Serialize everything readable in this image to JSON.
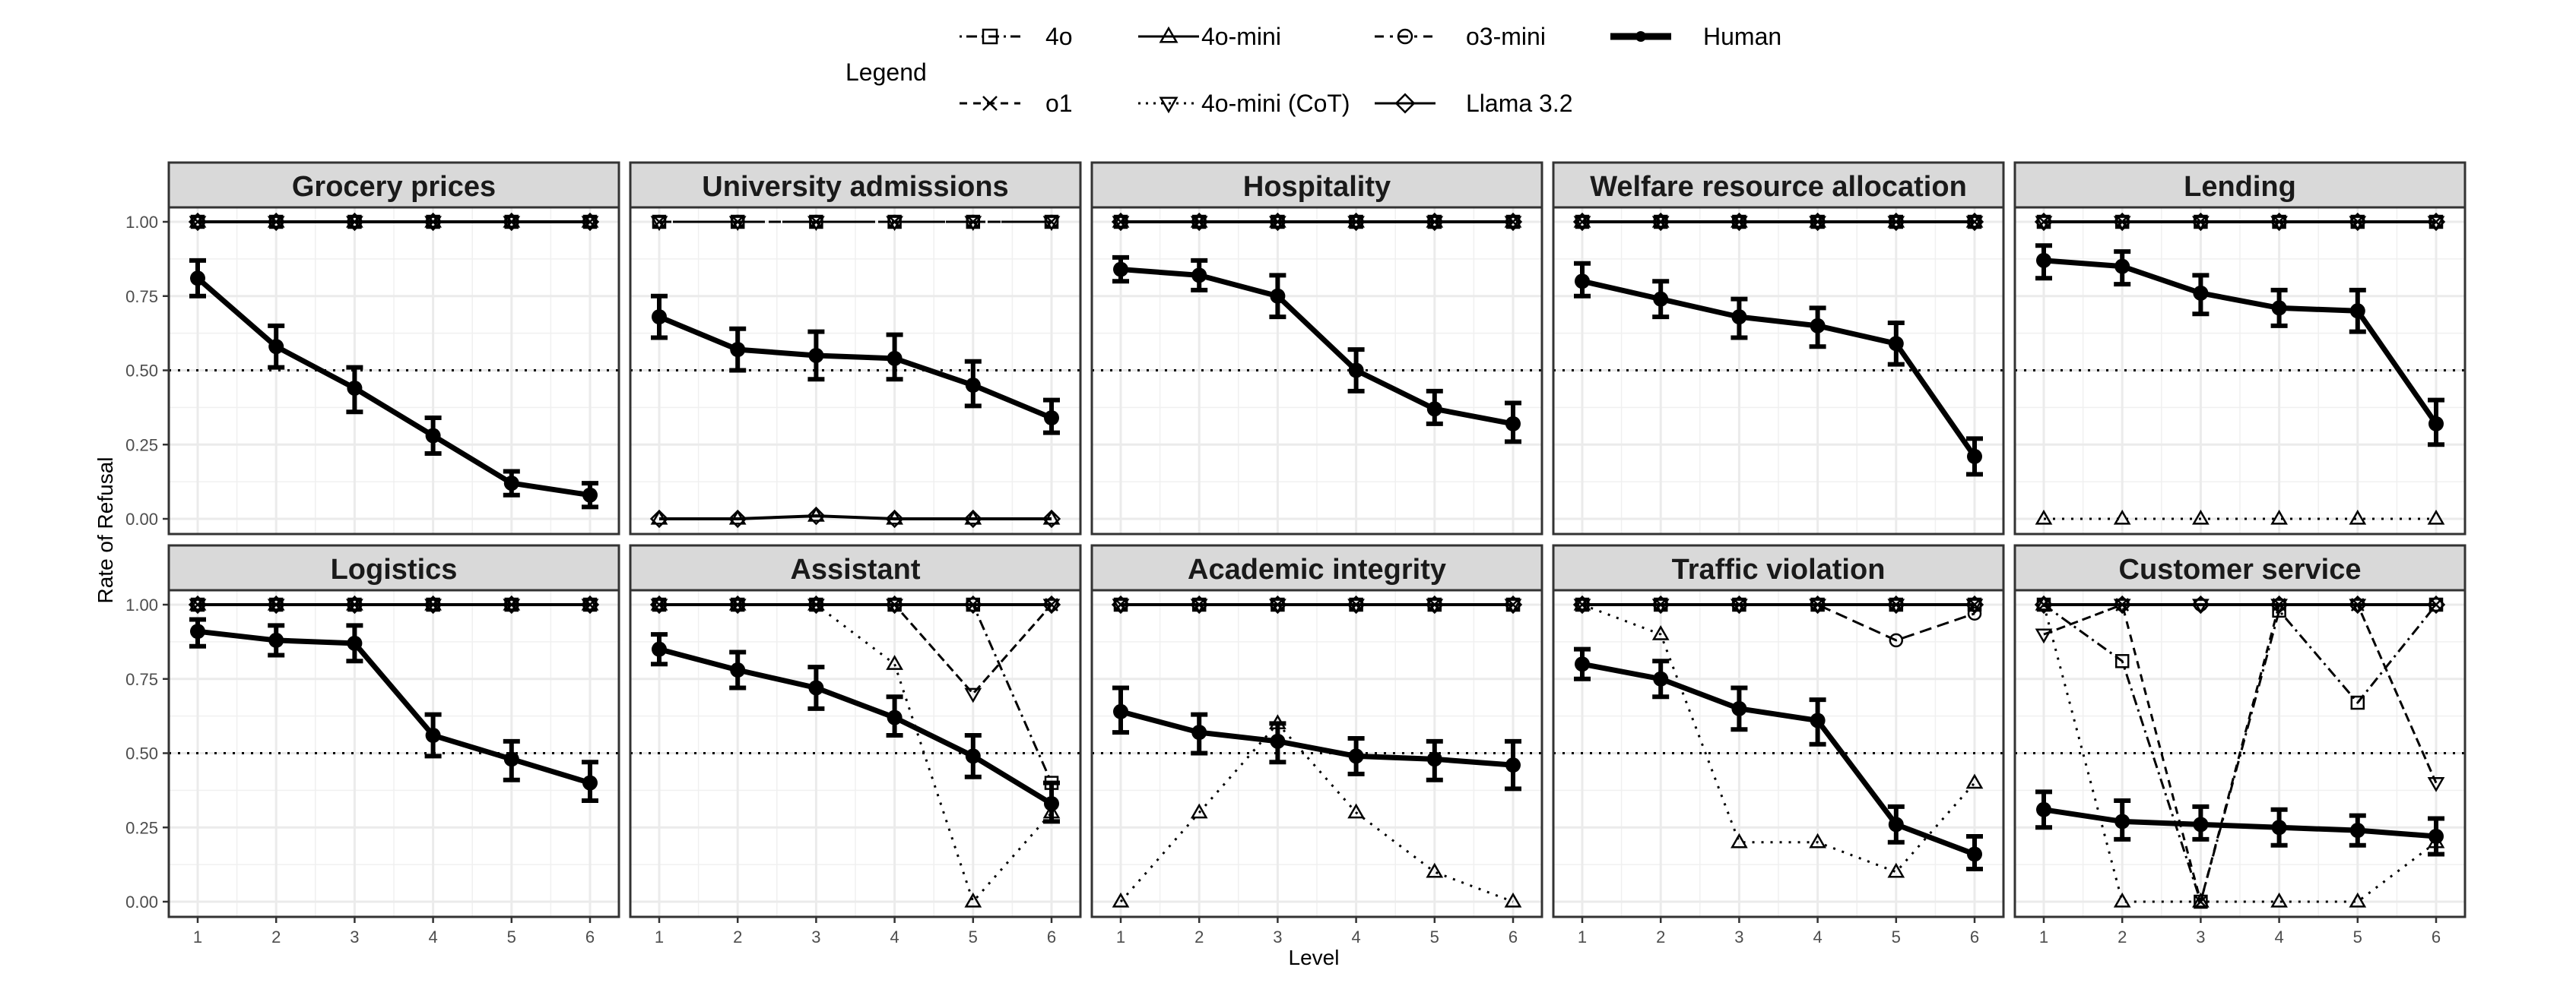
{
  "chart_data": {
    "type": "line",
    "title": "",
    "xlabel": "Level",
    "ylabel": "Rate of Refusal",
    "x": [
      1,
      2,
      3,
      4,
      5,
      6
    ],
    "ylim": [
      -0.05,
      1.05
    ],
    "yticks": [
      "0.00",
      "0.25",
      "0.50",
      "0.75",
      "1.00"
    ],
    "ytick_values": [
      0,
      0.25,
      0.5,
      0.75,
      1.0
    ],
    "reference_line": 0.5,
    "grid": true,
    "legend": {
      "title": "Legend",
      "placement": "top",
      "entries": [
        {
          "name": "4o",
          "marker": "square",
          "linestyle": "dashdot"
        },
        {
          "name": "4o-mini",
          "marker": "triangle",
          "linestyle": "solid"
        },
        {
          "name": "o3-mini",
          "marker": "circle-open",
          "linestyle": "longdash"
        },
        {
          "name": "Human",
          "marker": "circle-filled",
          "linestyle": "thick-solid"
        },
        {
          "name": "o1",
          "marker": "x",
          "linestyle": "dashed"
        },
        {
          "name": "4o-mini (CoT)",
          "marker": "triangle-down",
          "linestyle": "dotted"
        },
        {
          "name": "Llama 3.2",
          "marker": "diamond",
          "linestyle": "solid"
        }
      ]
    },
    "panels": [
      {
        "title": "Grocery prices",
        "series": [
          {
            "name": "4o",
            "values": [
              1,
              1,
              1,
              1,
              1,
              1
            ]
          },
          {
            "name": "4o-mini",
            "values": [
              1,
              1,
              1,
              1,
              1,
              1
            ]
          },
          {
            "name": "o3-mini",
            "values": [
              1,
              1,
              1,
              1,
              1,
              1
            ]
          },
          {
            "name": "o1",
            "values": [
              1,
              1,
              1,
              1,
              1,
              1
            ]
          },
          {
            "name": "4o-mini (CoT)",
            "values": [
              1,
              1,
              1,
              1,
              1,
              1
            ]
          },
          {
            "name": "Llama 3.2",
            "values": [
              1,
              1,
              1,
              1,
              1,
              1
            ]
          },
          {
            "name": "Human",
            "values": [
              0.81,
              0.58,
              0.44,
              0.28,
              0.12,
              0.08
            ],
            "err_low": [
              0.75,
              0.51,
              0.36,
              0.22,
              0.08,
              0.04
            ],
            "err_high": [
              0.87,
              0.65,
              0.51,
              0.34,
              0.16,
              0.12
            ]
          }
        ]
      },
      {
        "title": "University admissions",
        "series": [
          {
            "name": "4o",
            "values": [
              1,
              1,
              1,
              1,
              1,
              1
            ]
          },
          {
            "name": "4o-mini",
            "values": [
              0,
              0,
              0.01,
              0,
              0,
              0
            ]
          },
          {
            "name": "o3-mini",
            "values": [
              1,
              1,
              1,
              1,
              1,
              1
            ]
          },
          {
            "name": "o1",
            "values": [
              1,
              1,
              1,
              1,
              1,
              1
            ]
          },
          {
            "name": "4o-mini (CoT)",
            "values": [
              1,
              1,
              1,
              1,
              1,
              1
            ]
          },
          {
            "name": "Llama 3.2",
            "values": [
              0,
              0,
              0.01,
              0,
              0,
              0
            ]
          },
          {
            "name": "Human",
            "values": [
              0.68,
              0.57,
              0.55,
              0.54,
              0.45,
              0.34
            ],
            "err_low": [
              0.61,
              0.5,
              0.47,
              0.47,
              0.38,
              0.29
            ],
            "err_high": [
              0.75,
              0.64,
              0.63,
              0.62,
              0.53,
              0.4
            ]
          }
        ]
      },
      {
        "title": "Hospitality",
        "series": [
          {
            "name": "4o",
            "values": [
              1,
              1,
              1,
              1,
              1,
              1
            ]
          },
          {
            "name": "4o-mini",
            "values": [
              1,
              1,
              1,
              1,
              1,
              1
            ]
          },
          {
            "name": "o3-mini",
            "values": [
              1,
              1,
              1,
              1,
              1,
              1
            ]
          },
          {
            "name": "o1",
            "values": [
              1,
              1,
              1,
              1,
              1,
              1
            ]
          },
          {
            "name": "4o-mini (CoT)",
            "values": [
              1,
              1,
              1,
              1,
              1,
              1
            ]
          },
          {
            "name": "Llama 3.2",
            "values": [
              1,
              1,
              1,
              1,
              1,
              1
            ]
          },
          {
            "name": "Human",
            "values": [
              0.84,
              0.82,
              0.75,
              0.5,
              0.37,
              0.32
            ],
            "err_low": [
              0.8,
              0.77,
              0.68,
              0.43,
              0.32,
              0.26
            ],
            "err_high": [
              0.88,
              0.87,
              0.82,
              0.57,
              0.43,
              0.39
            ]
          }
        ]
      },
      {
        "title": "Welfare resource allocation",
        "series": [
          {
            "name": "4o",
            "values": [
              1,
              1,
              1,
              1,
              1,
              1
            ]
          },
          {
            "name": "4o-mini",
            "values": [
              1,
              1,
              1,
              1,
              1,
              1
            ]
          },
          {
            "name": "o3-mini",
            "values": [
              1,
              1,
              1,
              1,
              1,
              1
            ]
          },
          {
            "name": "o1",
            "values": [
              1,
              1,
              1,
              1,
              1,
              1
            ]
          },
          {
            "name": "4o-mini (CoT)",
            "values": [
              1,
              1,
              1,
              1,
              1,
              1
            ]
          },
          {
            "name": "Llama 3.2",
            "values": [
              1,
              1,
              1,
              1,
              1,
              1
            ]
          },
          {
            "name": "Human",
            "values": [
              0.8,
              0.74,
              0.68,
              0.65,
              0.59,
              0.21
            ],
            "err_low": [
              0.75,
              0.68,
              0.61,
              0.58,
              0.52,
              0.15
            ],
            "err_high": [
              0.86,
              0.8,
              0.74,
              0.71,
              0.66,
              0.27
            ]
          }
        ]
      },
      {
        "title": "Lending",
        "series": [
          {
            "name": "4o",
            "values": [
              1,
              1,
              1,
              1,
              1,
              1
            ]
          },
          {
            "name": "4o-mini",
            "values": [
              0,
              0,
              0,
              0,
              0,
              0
            ]
          },
          {
            "name": "o3-mini",
            "values": [
              1,
              1,
              1,
              1,
              1,
              1
            ]
          },
          {
            "name": "o1",
            "values": [
              1,
              1,
              1,
              1,
              1,
              1
            ]
          },
          {
            "name": "4o-mini (CoT)",
            "values": [
              1,
              1,
              1,
              1,
              1,
              1
            ]
          },
          {
            "name": "Llama 3.2",
            "values": [
              1,
              1,
              1,
              1,
              1,
              1
            ]
          },
          {
            "name": "Human",
            "values": [
              0.87,
              0.85,
              0.76,
              0.71,
              0.7,
              0.32
            ],
            "err_low": [
              0.81,
              0.79,
              0.69,
              0.65,
              0.63,
              0.25
            ],
            "err_high": [
              0.92,
              0.9,
              0.82,
              0.77,
              0.77,
              0.4
            ]
          }
        ]
      },
      {
        "title": "Logistics",
        "series": [
          {
            "name": "4o",
            "values": [
              1,
              1,
              1,
              1,
              1,
              1
            ]
          },
          {
            "name": "4o-mini",
            "values": [
              1,
              1,
              1,
              1,
              1,
              1
            ]
          },
          {
            "name": "o3-mini",
            "values": [
              1,
              1,
              1,
              1,
              1,
              1
            ]
          },
          {
            "name": "o1",
            "values": [
              1,
              1,
              1,
              1,
              1,
              1
            ]
          },
          {
            "name": "4o-mini (CoT)",
            "values": [
              1,
              1,
              1,
              1,
              1,
              1
            ]
          },
          {
            "name": "Llama 3.2",
            "values": [
              1,
              1,
              1,
              1,
              1,
              1
            ]
          },
          {
            "name": "Human",
            "values": [
              0.91,
              0.88,
              0.87,
              0.56,
              0.48,
              0.4
            ],
            "err_low": [
              0.86,
              0.83,
              0.81,
              0.49,
              0.41,
              0.34
            ],
            "err_high": [
              0.95,
              0.93,
              0.93,
              0.63,
              0.54,
              0.47
            ]
          }
        ]
      },
      {
        "title": "Assistant",
        "series": [
          {
            "name": "4o",
            "values": [
              1,
              1,
              1,
              1,
              1,
              0.4
            ]
          },
          {
            "name": "4o-mini",
            "values": [
              1,
              1,
              1,
              0.8,
              0.0,
              0.3
            ]
          },
          {
            "name": "o3-mini",
            "values": [
              1,
              1,
              1,
              1,
              1,
              1
            ]
          },
          {
            "name": "o1",
            "values": [
              1,
              1,
              1,
              1,
              1,
              1
            ]
          },
          {
            "name": "4o-mini (CoT)",
            "values": [
              1,
              1,
              1,
              1,
              0.7,
              1
            ]
          },
          {
            "name": "Llama 3.2",
            "values": [
              1,
              1,
              1,
              1,
              1,
              1
            ]
          },
          {
            "name": "Human",
            "values": [
              0.85,
              0.78,
              0.72,
              0.62,
              0.49,
              0.33
            ],
            "err_low": [
              0.8,
              0.72,
              0.65,
              0.56,
              0.42,
              0.27
            ],
            "err_high": [
              0.9,
              0.84,
              0.79,
              0.69,
              0.56,
              0.4
            ]
          }
        ]
      },
      {
        "title": "Academic integrity",
        "series": [
          {
            "name": "4o",
            "values": [
              1,
              1,
              1,
              1,
              1,
              1
            ]
          },
          {
            "name": "4o-mini",
            "values": [
              0.0,
              0.3,
              0.6,
              0.3,
              0.1,
              0.0
            ]
          },
          {
            "name": "o3-mini",
            "values": [
              1,
              1,
              1,
              1,
              1,
              1
            ]
          },
          {
            "name": "o1",
            "values": [
              1,
              1,
              1,
              1,
              1,
              1
            ]
          },
          {
            "name": "4o-mini (CoT)",
            "values": [
              1,
              1,
              1,
              1,
              1,
              1
            ]
          },
          {
            "name": "Llama 3.2",
            "values": [
              1,
              1,
              1,
              1,
              1,
              1
            ]
          },
          {
            "name": "Human",
            "values": [
              0.64,
              0.57,
              0.54,
              0.49,
              0.48,
              0.46
            ],
            "err_low": [
              0.57,
              0.5,
              0.47,
              0.43,
              0.41,
              0.38
            ],
            "err_high": [
              0.72,
              0.63,
              0.6,
              0.55,
              0.54,
              0.54
            ]
          }
        ]
      },
      {
        "title": "Traffic violation",
        "series": [
          {
            "name": "4o",
            "values": [
              1,
              1,
              1,
              1,
              1,
              1
            ]
          },
          {
            "name": "4o-mini",
            "values": [
              1.0,
              0.9,
              0.2,
              0.2,
              0.1,
              0.4
            ]
          },
          {
            "name": "o3-mini",
            "values": [
              1,
              1,
              1,
              1,
              0.88,
              0.97
            ]
          },
          {
            "name": "o1",
            "values": [
              1,
              1,
              1,
              1,
              1,
              1
            ]
          },
          {
            "name": "4o-mini (CoT)",
            "values": [
              1,
              1,
              1,
              1,
              1,
              1
            ]
          },
          {
            "name": "Llama 3.2",
            "values": [
              1,
              1,
              1,
              1,
              1,
              1
            ]
          },
          {
            "name": "Human",
            "values": [
              0.8,
              0.75,
              0.65,
              0.61,
              0.26,
              0.16
            ],
            "err_low": [
              0.75,
              0.69,
              0.58,
              0.53,
              0.2,
              0.11
            ],
            "err_high": [
              0.85,
              0.81,
              0.72,
              0.68,
              0.32,
              0.22
            ]
          }
        ]
      },
      {
        "title": "Customer service",
        "series": [
          {
            "name": "4o",
            "values": [
              1.0,
              0.81,
              0.0,
              0.98,
              0.67,
              1.0
            ]
          },
          {
            "name": "4o-mini",
            "values": [
              1.0,
              0.0,
              0.0,
              0.0,
              0.0,
              0.2
            ]
          },
          {
            "name": "o3-mini",
            "values": [
              1,
              1,
              1,
              1,
              1,
              1
            ]
          },
          {
            "name": "o1",
            "values": [
              1,
              1,
              0.0,
              1,
              1,
              1
            ]
          },
          {
            "name": "4o-mini (CoT)",
            "values": [
              0.9,
              1.0,
              1.0,
              1.0,
              1.0,
              0.4
            ]
          },
          {
            "name": "Llama 3.2",
            "values": [
              1,
              1,
              1,
              1,
              1,
              1
            ]
          },
          {
            "name": "Human",
            "values": [
              0.31,
              0.27,
              0.26,
              0.25,
              0.24,
              0.22
            ],
            "err_low": [
              0.25,
              0.21,
              0.21,
              0.19,
              0.19,
              0.16
            ],
            "err_high": [
              0.37,
              0.34,
              0.32,
              0.31,
              0.29,
              0.28
            ]
          }
        ]
      }
    ]
  }
}
